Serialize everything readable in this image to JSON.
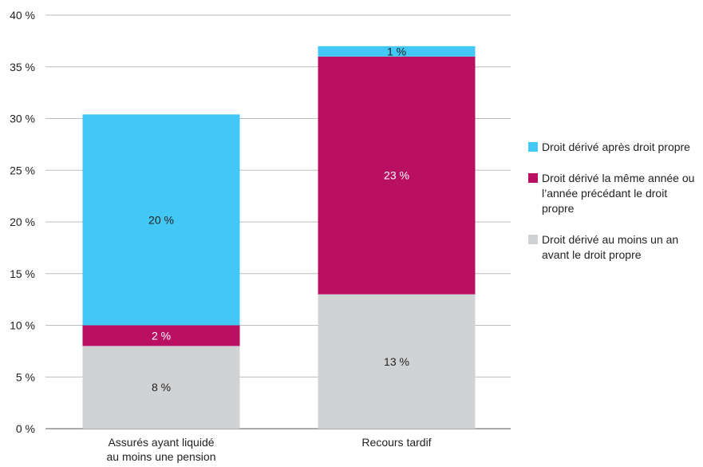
{
  "chart_data": {
    "type": "bar",
    "stacked": true,
    "categories": [
      "Assurés ayant liquidé au moins une pension",
      "Recours tardif"
    ],
    "category_lines": [
      [
        "Assurés ayant liquidé",
        "au moins une pension"
      ],
      [
        "Recours tardif"
      ]
    ],
    "series": [
      {
        "name": "Droit dérivé au moins un an avant le droit propre",
        "color": "#d1d2d4",
        "label_color": "#222222",
        "values": [
          8,
          13
        ],
        "labels": [
          "8 %",
          "13 %"
        ]
      },
      {
        "name": "Droit dérivé la même année ou l’année précédant le droit propre",
        "color": "#b91064",
        "label_color": "#ffffff",
        "values": [
          2,
          23
        ],
        "labels": [
          "2 %",
          "23 %"
        ]
      },
      {
        "name": "Droit dérivé après droit propre",
        "color": "#43c7f4",
        "label_color": "#222222",
        "values": [
          20.4,
          1
        ],
        "labels": [
          "20 %",
          "1 %"
        ]
      }
    ],
    "ylim": [
      0,
      40
    ],
    "yticks": [
      0,
      5,
      10,
      15,
      20,
      25,
      30,
      35,
      40
    ],
    "ytick_labels": [
      "0 %",
      "5 %",
      "10 %",
      "15 %",
      "20 %",
      "25 %",
      "30 %",
      "35 %",
      "40 %"
    ],
    "grid": true,
    "legend_position": "right",
    "legend_order": [
      2,
      1,
      0
    ]
  }
}
